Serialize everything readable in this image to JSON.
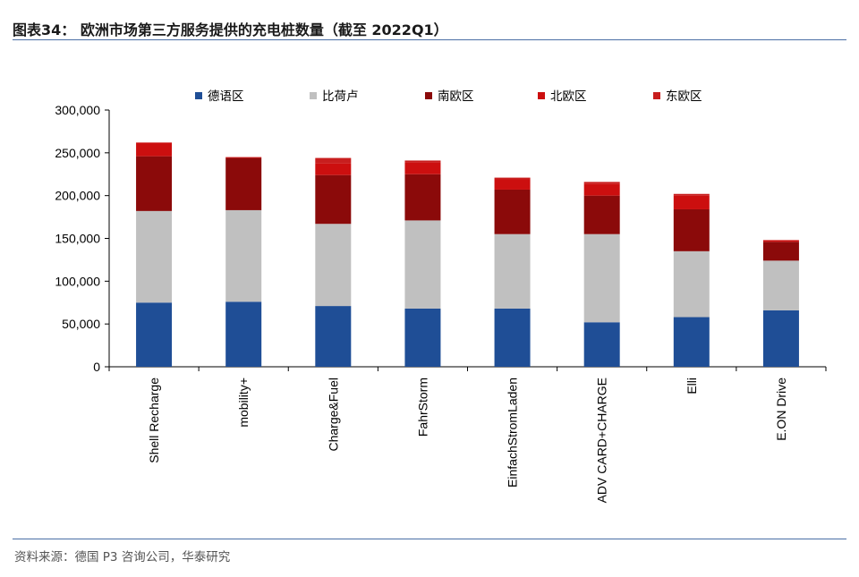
{
  "figure": {
    "title": "图表34： 欧洲市场第三方服务提供的充电桩数量（截至 2022Q1）",
    "source": "资料来源：德国 P3 咨询公司，华泰研究"
  },
  "colors": {
    "rule": "#4a6fa5",
    "series": [
      "#1f4e96",
      "#c0c0c0",
      "#8b0a0a",
      "#cc0f0f",
      "#c81e1e"
    ]
  },
  "chart_data": {
    "type": "bar",
    "stacked": true,
    "title": "",
    "xlabel": "",
    "ylabel": "",
    "ylim": [
      0,
      300000
    ],
    "y_ticks": [
      0,
      50000,
      100000,
      150000,
      200000,
      250000,
      300000
    ],
    "y_tick_labels": [
      "0",
      "50,000",
      "100,000",
      "150,000",
      "200,000",
      "250,000",
      "300,000"
    ],
    "legend_position": "top",
    "categories": [
      "Shell Recharge",
      "mobility+",
      "Charge&Fuel",
      "FahrStorm",
      "EinfachStromLaden",
      "ADV CARD+CHARGE",
      "Elli",
      "E.ON Drive"
    ],
    "series": [
      {
        "name": "德语区",
        "values": [
          75000,
          76000,
          71000,
          68000,
          68000,
          52000,
          58000,
          66000
        ]
      },
      {
        "name": "比荷卢",
        "values": [
          107000,
          107000,
          96000,
          103000,
          87000,
          103000,
          77000,
          58000
        ]
      },
      {
        "name": "南欧区",
        "values": [
          64000,
          61000,
          57000,
          54000,
          52000,
          45000,
          49000,
          22000
        ]
      },
      {
        "name": "北欧区",
        "values": [
          16000,
          1000,
          14000,
          14000,
          12000,
          14000,
          16000,
          2000
        ]
      },
      {
        "name": "东欧区",
        "values": [
          0,
          0,
          6000,
          2000,
          2000,
          2000,
          2000,
          0
        ]
      }
    ]
  }
}
